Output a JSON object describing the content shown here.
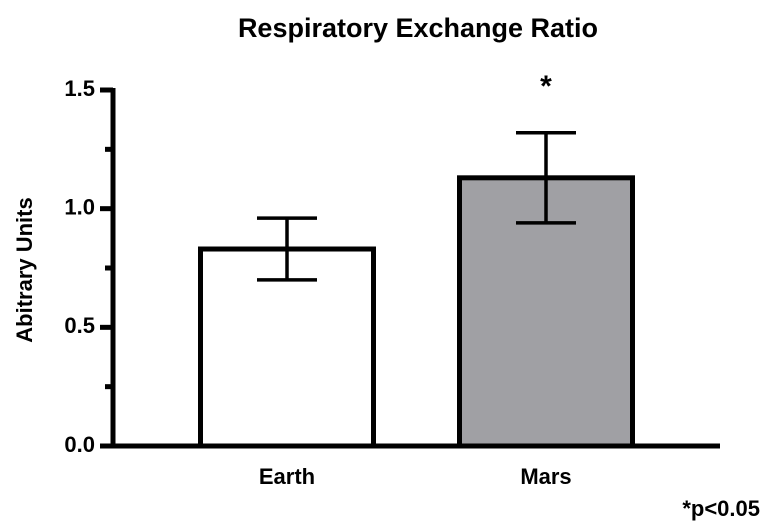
{
  "chart_data": {
    "type": "bar",
    "title": "Respiratory Exchange Ratio",
    "y_label": "Abitrary Units",
    "categories": [
      "Earth",
      "Mars"
    ],
    "values": [
      0.83,
      1.13
    ],
    "errors": [
      0.13,
      0.19
    ],
    "colors": [
      "#ffffff",
      "#a0a0a4"
    ],
    "ylim": [
      0,
      1.5
    ],
    "yticks": [
      {
        "value": 0,
        "label": "0.0"
      },
      0.5,
      {
        "value": 1,
        "label": "1.0"
      },
      {
        "value": 1.5,
        "label": "1.5"
      }
    ],
    "minor_yticks": [
      0.25,
      0.75,
      1.25
    ],
    "significance_marker": "*",
    "footnote": "*p<0.05"
  }
}
